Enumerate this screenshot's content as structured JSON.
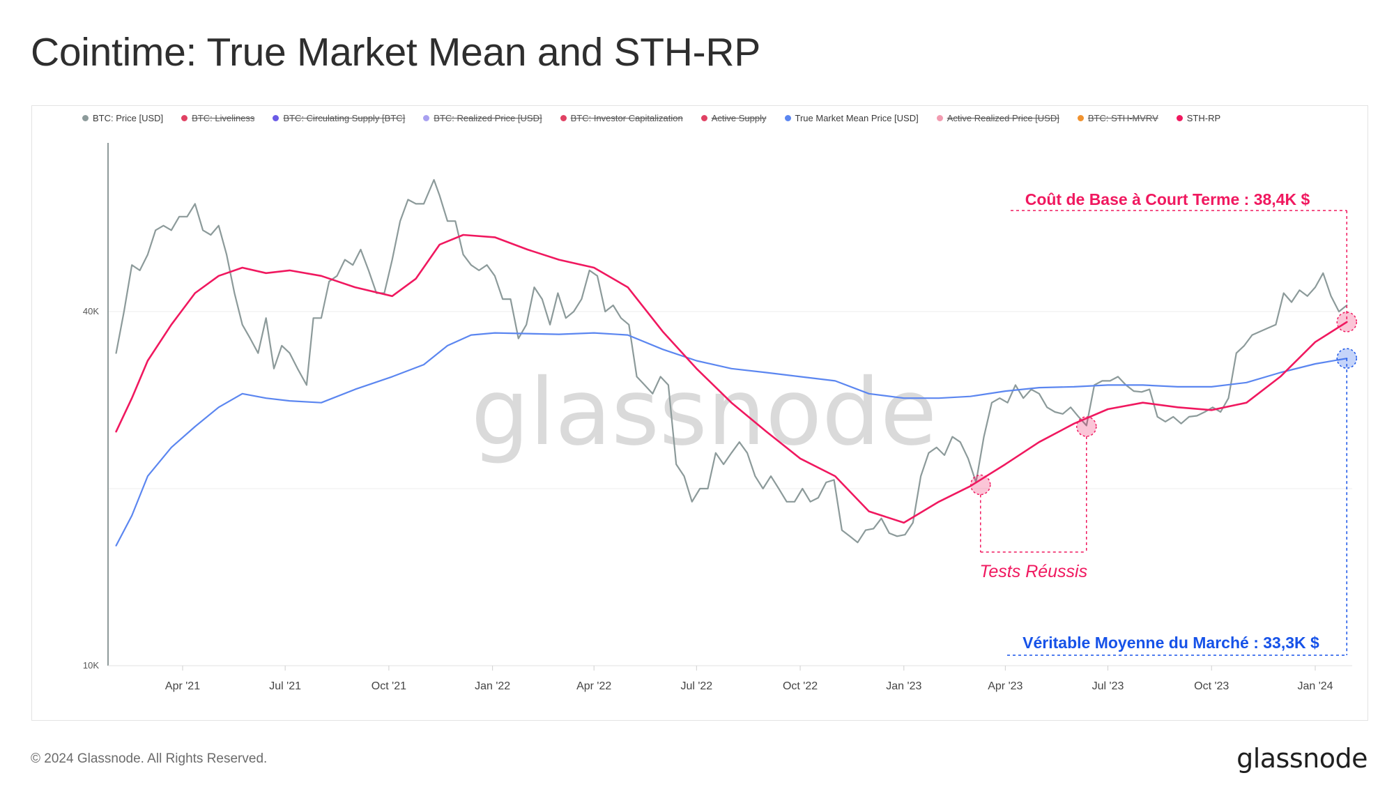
{
  "header": {
    "title": "Cointime: True Market Mean and STH-RP"
  },
  "legend": [
    {
      "label": "BTC: Price [USD]",
      "color": "#8c9a9a",
      "enabled": true
    },
    {
      "label": "BTC: Liveliness",
      "color": "#e04163",
      "enabled": false
    },
    {
      "label": "BTC: Circulating Supply [BTC]",
      "color": "#6a5be6",
      "enabled": false
    },
    {
      "label": "BTC: Realized Price [USD]",
      "color": "#a8a0f0",
      "enabled": false
    },
    {
      "label": "BTC: Investor Capitalization",
      "color": "#e04163",
      "enabled": false
    },
    {
      "label": "Active Supply",
      "color": "#e04163",
      "enabled": false
    },
    {
      "label": "True Market Mean Price [USD]",
      "color": "#5b86f0",
      "enabled": true
    },
    {
      "label": "Active Realized Price [USD]",
      "color": "#f29bb0",
      "enabled": false
    },
    {
      "label": "BTC: STH-MVRV",
      "color": "#f0922f",
      "enabled": false
    },
    {
      "label": "STH-RP",
      "color": "#f0185f",
      "enabled": true
    }
  ],
  "annotations": {
    "sth_cost_basis": "Coût de Base à Court Terme : 38,4K $",
    "true_market_mean": "Véritable Moyenne du Marché : 33,3K $",
    "successful_tests": "Tests Réussis"
  },
  "watermark": "glassnode",
  "footer": {
    "copyright": "© 2024 Glassnode. All Rights Reserved.",
    "logo_text": "glassnode"
  },
  "colors": {
    "price": "#8c9a9a",
    "true_market_mean": "#5b86f0",
    "sth_rp": "#f0185f",
    "annotation_pink": "#f0185f",
    "annotation_blue": "#1652e8"
  },
  "chart_data": {
    "type": "line",
    "title": "Cointime: True Market Mean and STH-RP",
    "x_axis": {
      "start": "2021-02-01",
      "end": "2024-02-01",
      "ticks": [
        "Apr '21",
        "Jul '21",
        "Oct '21",
        "Jan '22",
        "Apr '22",
        "Jul '22",
        "Oct '22",
        "Jan '23",
        "Apr '23",
        "Jul '23",
        "Oct '23",
        "Jan '24"
      ],
      "tick_dates": [
        "2021-04-01",
        "2021-07-01",
        "2021-10-01",
        "2022-01-01",
        "2022-04-01",
        "2022-07-01",
        "2022-10-01",
        "2023-01-01",
        "2023-04-01",
        "2023-07-01",
        "2023-10-01",
        "2024-01-01"
      ]
    },
    "y_axis": {
      "scale": "log",
      "ticks": [
        "10K",
        "40K"
      ],
      "tick_values": [
        10000,
        40000
      ],
      "ylim": [
        10000,
        70000
      ]
    },
    "grid": true,
    "series": [
      {
        "name": "BTC: Price [USD]",
        "color": "#8c9a9a",
        "points": [
          [
            "2021-02-01",
            34000
          ],
          [
            "2021-02-08",
            40000
          ],
          [
            "2021-02-15",
            48000
          ],
          [
            "2021-02-22",
            47000
          ],
          [
            "2021-03-01",
            50000
          ],
          [
            "2021-03-08",
            55000
          ],
          [
            "2021-03-15",
            56000
          ],
          [
            "2021-03-22",
            55000
          ],
          [
            "2021-03-29",
            58000
          ],
          [
            "2021-04-05",
            58000
          ],
          [
            "2021-04-12",
            61000
          ],
          [
            "2021-04-19",
            55000
          ],
          [
            "2021-04-26",
            54000
          ],
          [
            "2021-05-03",
            56000
          ],
          [
            "2021-05-10",
            50000
          ],
          [
            "2021-05-17",
            43000
          ],
          [
            "2021-05-24",
            38000
          ],
          [
            "2021-05-31",
            36000
          ],
          [
            "2021-06-07",
            34000
          ],
          [
            "2021-06-14",
            39000
          ],
          [
            "2021-06-21",
            32000
          ],
          [
            "2021-06-28",
            35000
          ],
          [
            "2021-07-05",
            34000
          ],
          [
            "2021-07-12",
            32000
          ],
          [
            "2021-07-20",
            30000
          ],
          [
            "2021-07-26",
            39000
          ],
          [
            "2021-08-02",
            39000
          ],
          [
            "2021-08-09",
            45000
          ],
          [
            "2021-08-16",
            46000
          ],
          [
            "2021-08-23",
            49000
          ],
          [
            "2021-08-30",
            48000
          ],
          [
            "2021-09-06",
            51000
          ],
          [
            "2021-09-13",
            47000
          ],
          [
            "2021-09-20",
            43000
          ],
          [
            "2021-09-27",
            43000
          ],
          [
            "2021-10-04",
            49000
          ],
          [
            "2021-10-11",
            57000
          ],
          [
            "2021-10-18",
            62000
          ],
          [
            "2021-10-25",
            61000
          ],
          [
            "2021-11-01",
            61000
          ],
          [
            "2021-11-10",
            67000
          ],
          [
            "2021-11-15",
            63000
          ],
          [
            "2021-11-22",
            57000
          ],
          [
            "2021-11-29",
            57000
          ],
          [
            "2021-12-06",
            50000
          ],
          [
            "2021-12-13",
            48000
          ],
          [
            "2021-12-20",
            47000
          ],
          [
            "2021-12-27",
            48000
          ],
          [
            "2022-01-03",
            46000
          ],
          [
            "2022-01-10",
            42000
          ],
          [
            "2022-01-17",
            42000
          ],
          [
            "2022-01-24",
            36000
          ],
          [
            "2022-01-31",
            38000
          ],
          [
            "2022-02-07",
            44000
          ],
          [
            "2022-02-14",
            42000
          ],
          [
            "2022-02-21",
            38000
          ],
          [
            "2022-02-28",
            43000
          ],
          [
            "2022-03-07",
            39000
          ],
          [
            "2022-03-14",
            40000
          ],
          [
            "2022-03-21",
            42000
          ],
          [
            "2022-03-28",
            47000
          ],
          [
            "2022-04-04",
            46000
          ],
          [
            "2022-04-11",
            40000
          ],
          [
            "2022-04-18",
            41000
          ],
          [
            "2022-04-25",
            39000
          ],
          [
            "2022-05-02",
            38000
          ],
          [
            "2022-05-09",
            31000
          ],
          [
            "2022-05-16",
            30000
          ],
          [
            "2022-05-23",
            29000
          ],
          [
            "2022-05-30",
            31000
          ],
          [
            "2022-06-06",
            30000
          ],
          [
            "2022-06-13",
            22000
          ],
          [
            "2022-06-20",
            21000
          ],
          [
            "2022-06-27",
            19000
          ],
          [
            "2022-07-04",
            20000
          ],
          [
            "2022-07-11",
            20000
          ],
          [
            "2022-07-18",
            23000
          ],
          [
            "2022-07-25",
            22000
          ],
          [
            "2022-08-01",
            23000
          ],
          [
            "2022-08-08",
            24000
          ],
          [
            "2022-08-15",
            23000
          ],
          [
            "2022-08-22",
            21000
          ],
          [
            "2022-08-29",
            20000
          ],
          [
            "2022-09-05",
            21000
          ],
          [
            "2022-09-12",
            20000
          ],
          [
            "2022-09-19",
            19000
          ],
          [
            "2022-09-26",
            19000
          ],
          [
            "2022-10-03",
            20000
          ],
          [
            "2022-10-10",
            19000
          ],
          [
            "2022-10-17",
            19300
          ],
          [
            "2022-10-24",
            20500
          ],
          [
            "2022-10-31",
            20700
          ],
          [
            "2022-11-07",
            17000
          ],
          [
            "2022-11-14",
            16600
          ],
          [
            "2022-11-21",
            16200
          ],
          [
            "2022-11-28",
            17000
          ],
          [
            "2022-12-05",
            17100
          ],
          [
            "2022-12-12",
            17800
          ],
          [
            "2022-12-19",
            16800
          ],
          [
            "2022-12-26",
            16600
          ],
          [
            "2023-01-02",
            16700
          ],
          [
            "2023-01-09",
            17500
          ],
          [
            "2023-01-16",
            21000
          ],
          [
            "2023-01-23",
            23000
          ],
          [
            "2023-01-30",
            23500
          ],
          [
            "2023-02-06",
            22800
          ],
          [
            "2023-02-13",
            24500
          ],
          [
            "2023-02-20",
            24000
          ],
          [
            "2023-02-27",
            22500
          ],
          [
            "2023-03-06",
            20500
          ],
          [
            "2023-03-13",
            24500
          ],
          [
            "2023-03-20",
            28000
          ],
          [
            "2023-03-27",
            28500
          ],
          [
            "2023-04-03",
            28000
          ],
          [
            "2023-04-10",
            30000
          ],
          [
            "2023-04-17",
            28500
          ],
          [
            "2023-04-24",
            29500
          ],
          [
            "2023-05-01",
            29000
          ],
          [
            "2023-05-08",
            27500
          ],
          [
            "2023-05-15",
            27000
          ],
          [
            "2023-05-22",
            26800
          ],
          [
            "2023-05-29",
            27500
          ],
          [
            "2023-06-05",
            26500
          ],
          [
            "2023-06-12",
            25600
          ],
          [
            "2023-06-19",
            30000
          ],
          [
            "2023-06-26",
            30500
          ],
          [
            "2023-07-03",
            30500
          ],
          [
            "2023-07-10",
            31000
          ],
          [
            "2023-07-17",
            30000
          ],
          [
            "2023-07-24",
            29300
          ],
          [
            "2023-07-31",
            29200
          ],
          [
            "2023-08-07",
            29500
          ],
          [
            "2023-08-14",
            26500
          ],
          [
            "2023-08-21",
            26000
          ],
          [
            "2023-08-28",
            26500
          ],
          [
            "2023-09-04",
            25800
          ],
          [
            "2023-09-11",
            26500
          ],
          [
            "2023-09-18",
            26600
          ],
          [
            "2023-09-25",
            27000
          ],
          [
            "2023-10-02",
            27500
          ],
          [
            "2023-10-09",
            27000
          ],
          [
            "2023-10-16",
            28500
          ],
          [
            "2023-10-23",
            34000
          ],
          [
            "2023-10-30",
            35000
          ],
          [
            "2023-11-06",
            36500
          ],
          [
            "2023-11-13",
            37000
          ],
          [
            "2023-11-20",
            37500
          ],
          [
            "2023-11-27",
            38000
          ],
          [
            "2023-12-04",
            43000
          ],
          [
            "2023-12-11",
            41500
          ],
          [
            "2023-12-18",
            43500
          ],
          [
            "2023-12-25",
            42500
          ],
          [
            "2024-01-01",
            44000
          ],
          [
            "2024-01-08",
            46500
          ],
          [
            "2024-01-15",
            42500
          ],
          [
            "2024-01-22",
            40000
          ],
          [
            "2024-01-29",
            41000
          ]
        ]
      },
      {
        "name": "True Market Mean Price [USD]",
        "color": "#5b86f0",
        "points": [
          [
            "2021-02-01",
            16000
          ],
          [
            "2021-02-15",
            18000
          ],
          [
            "2021-03-01",
            21000
          ],
          [
            "2021-03-22",
            23500
          ],
          [
            "2021-04-12",
            25500
          ],
          [
            "2021-05-03",
            27500
          ],
          [
            "2021-05-24",
            29000
          ],
          [
            "2021-06-14",
            28500
          ],
          [
            "2021-07-05",
            28200
          ],
          [
            "2021-08-02",
            28000
          ],
          [
            "2021-09-01",
            29500
          ],
          [
            "2021-10-04",
            31000
          ],
          [
            "2021-11-01",
            32500
          ],
          [
            "2021-11-22",
            35000
          ],
          [
            "2021-12-13",
            36500
          ],
          [
            "2022-01-03",
            36800
          ],
          [
            "2022-02-01",
            36700
          ],
          [
            "2022-03-01",
            36600
          ],
          [
            "2022-04-01",
            36800
          ],
          [
            "2022-05-01",
            36500
          ],
          [
            "2022-06-01",
            34500
          ],
          [
            "2022-07-01",
            33000
          ],
          [
            "2022-08-01",
            32000
          ],
          [
            "2022-09-01",
            31500
          ],
          [
            "2022-10-01",
            31000
          ],
          [
            "2022-11-01",
            30500
          ],
          [
            "2022-12-01",
            29000
          ],
          [
            "2023-01-01",
            28500
          ],
          [
            "2023-02-01",
            28500
          ],
          [
            "2023-03-01",
            28700
          ],
          [
            "2023-04-01",
            29300
          ],
          [
            "2023-05-01",
            29700
          ],
          [
            "2023-06-01",
            29800
          ],
          [
            "2023-07-01",
            30000
          ],
          [
            "2023-08-01",
            30000
          ],
          [
            "2023-09-01",
            29800
          ],
          [
            "2023-10-01",
            29800
          ],
          [
            "2023-11-01",
            30300
          ],
          [
            "2023-12-01",
            31500
          ],
          [
            "2024-01-01",
            32600
          ],
          [
            "2024-01-29",
            33300
          ]
        ]
      },
      {
        "name": "STH-RP",
        "color": "#f0185f",
        "points": [
          [
            "2021-02-01",
            25000
          ],
          [
            "2021-02-15",
            28500
          ],
          [
            "2021-03-01",
            33000
          ],
          [
            "2021-03-22",
            38000
          ],
          [
            "2021-04-12",
            43000
          ],
          [
            "2021-05-03",
            46000
          ],
          [
            "2021-05-24",
            47500
          ],
          [
            "2021-06-14",
            46500
          ],
          [
            "2021-07-05",
            47000
          ],
          [
            "2021-08-02",
            46000
          ],
          [
            "2021-09-01",
            44000
          ],
          [
            "2021-10-04",
            42500
          ],
          [
            "2021-10-25",
            45500
          ],
          [
            "2021-11-15",
            52000
          ],
          [
            "2021-12-06",
            54000
          ],
          [
            "2022-01-03",
            53500
          ],
          [
            "2022-02-01",
            51000
          ],
          [
            "2022-03-01",
            49000
          ],
          [
            "2022-04-01",
            47500
          ],
          [
            "2022-05-01",
            44000
          ],
          [
            "2022-06-01",
            37000
          ],
          [
            "2022-07-01",
            32000
          ],
          [
            "2022-08-01",
            28000
          ],
          [
            "2022-09-01",
            25000
          ],
          [
            "2022-10-01",
            22500
          ],
          [
            "2022-11-01",
            21000
          ],
          [
            "2022-12-01",
            18300
          ],
          [
            "2023-01-01",
            17500
          ],
          [
            "2023-02-01",
            19000
          ],
          [
            "2023-03-01",
            20200
          ],
          [
            "2023-04-01",
            22000
          ],
          [
            "2023-05-01",
            24000
          ],
          [
            "2023-06-01",
            25800
          ],
          [
            "2023-07-01",
            27300
          ],
          [
            "2023-08-01",
            28000
          ],
          [
            "2023-09-01",
            27500
          ],
          [
            "2023-10-01",
            27200
          ],
          [
            "2023-11-01",
            28000
          ],
          [
            "2023-12-01",
            31000
          ],
          [
            "2024-01-01",
            35500
          ],
          [
            "2024-01-29",
            38400
          ]
        ]
      }
    ]
  }
}
